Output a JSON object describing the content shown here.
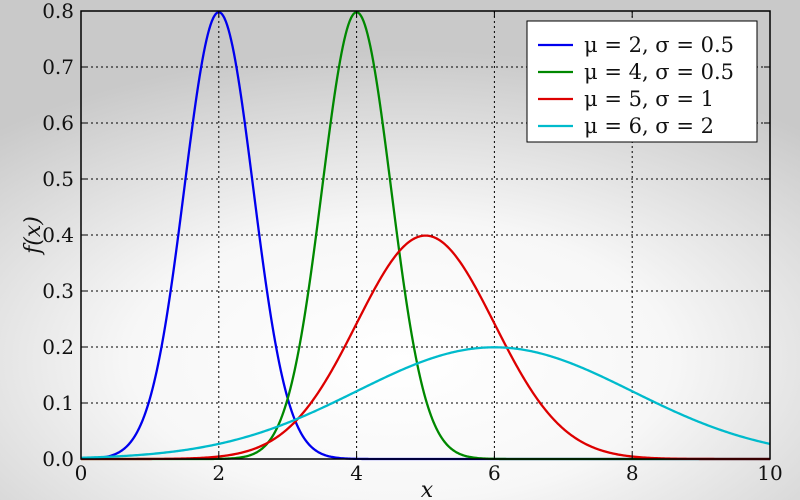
{
  "chart_data": {
    "type": "line",
    "xlabel": "x",
    "ylabel": "f(x)",
    "xlim": [
      0,
      10
    ],
    "ylim": [
      0,
      0.8
    ],
    "x_ticks": [
      0,
      2,
      4,
      6,
      8,
      10
    ],
    "y_ticks": [
      0.0,
      0.1,
      0.2,
      0.3,
      0.4,
      0.5,
      0.6,
      0.7,
      0.8
    ],
    "x_tick_labels": [
      "0",
      "2",
      "4",
      "6",
      "8",
      "10"
    ],
    "y_tick_labels": [
      "0.0",
      "0.1",
      "0.2",
      "0.3",
      "0.4",
      "0.5",
      "0.6",
      "0.7",
      "0.8"
    ],
    "grid": true,
    "legend_position": "top-right",
    "series": [
      {
        "name": "μ = 2, σ = 0.5",
        "mu": 2,
        "sigma": 0.5,
        "color": "#0000ee"
      },
      {
        "name": "μ = 4, σ = 0.5",
        "mu": 4,
        "sigma": 0.5,
        "color": "#008800"
      },
      {
        "name": "μ = 5, σ = 1",
        "mu": 5,
        "sigma": 1,
        "color": "#dd0000"
      },
      {
        "name": "μ = 6, σ = 2",
        "mu": 6,
        "sigma": 2,
        "color": "#00bbcc"
      }
    ]
  }
}
